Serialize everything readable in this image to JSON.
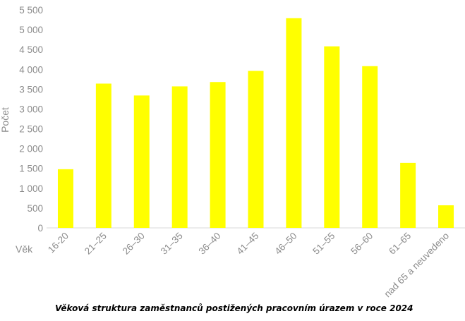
{
  "chart_data": {
    "type": "bar",
    "title": "",
    "xlabel": "Věk",
    "ylabel": "Počet",
    "categories": [
      "16-20",
      "21–25",
      "26–30",
      "31–35",
      "36–40",
      "41–45",
      "46–50",
      "51–55",
      "56–60",
      "61–65",
      "nad 65 a neuvedeno"
    ],
    "values": [
      1480,
      3640,
      3340,
      3570,
      3680,
      3960,
      5290,
      4580,
      4080,
      1640,
      570
    ],
    "ylim": [
      0,
      5500
    ],
    "yticks": [
      0,
      500,
      1000,
      1500,
      2000,
      2500,
      3000,
      3500,
      4000,
      4500,
      5000,
      5500
    ],
    "ytick_labels": [
      "0",
      "500",
      "1 000",
      "1 500",
      "2 000",
      "2 500",
      "3 000",
      "3 500",
      "4 000",
      "4 500",
      "5 000",
      "5 500"
    ],
    "grid": false,
    "legend": "none",
    "bar_color": "#ffff00"
  },
  "caption": "Věková struktura zaměstnanců postižených pracovním úrazem v roce 2024"
}
